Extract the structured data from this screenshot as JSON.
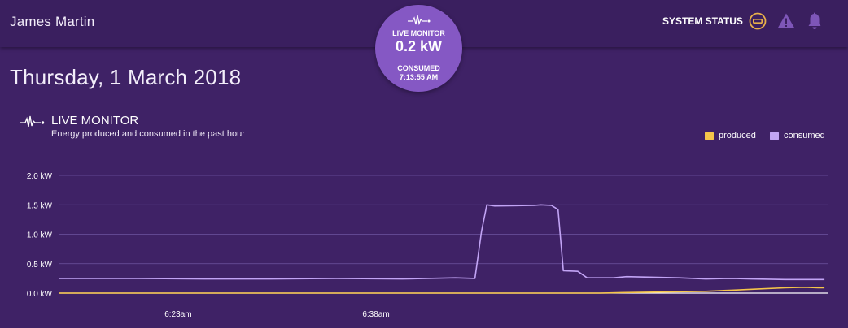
{
  "header": {
    "user_name": "James Martin",
    "system_status_label": "SYSTEM STATUS",
    "icons": [
      {
        "name": "minus-circle-icon",
        "color": "#e8b04a"
      },
      {
        "name": "warning-icon",
        "color": "#7e56b8"
      },
      {
        "name": "bell-icon",
        "color": "#7e56b8"
      }
    ]
  },
  "live_bubble": {
    "icon": "pulse-icon",
    "label": "LIVE MONITOR",
    "value": "0.2 kW",
    "consumed_label": "CONSUMED",
    "time": "7:13:55 AM",
    "color": "#8558c4"
  },
  "date_heading": "Thursday, 1 March 2018",
  "section": {
    "icon": "pulse-icon",
    "title": "LIVE MONITOR",
    "subtitle": "Energy produced and consumed in the past hour"
  },
  "colors": {
    "background": "#3f2266",
    "produced": "#f5c54a",
    "consumed": "#c2a4f5",
    "grid": "#6e54a0"
  },
  "chart_data": {
    "type": "line",
    "title": "LIVE MONITOR",
    "subtitle": "Energy produced and consumed in the past hour",
    "legend_position": "top-right",
    "grid": true,
    "ylim": [
      0,
      2.0
    ],
    "y_ticks": [
      "2.0 kW",
      "1.5 kW",
      "1.0 kW",
      "0.5 kW",
      "0.0 kW"
    ],
    "y_tick_values": [
      2.0,
      1.5,
      1.0,
      0.5,
      0.0
    ],
    "x_ticks": [
      {
        "label": "6:23am",
        "minute": 23
      },
      {
        "label": "6:38am",
        "minute": 38
      }
    ],
    "x_range_minutes": [
      14,
      72.3
    ],
    "series": [
      {
        "name": "produced",
        "color": "#f5c54a",
        "points": [
          [
            14,
            0.0
          ],
          [
            55,
            0.0
          ],
          [
            57,
            0.01
          ],
          [
            60,
            0.02
          ],
          [
            63,
            0.03
          ],
          [
            65,
            0.05
          ],
          [
            67,
            0.07
          ],
          [
            69,
            0.09
          ],
          [
            70.5,
            0.1
          ],
          [
            71.5,
            0.09
          ],
          [
            72,
            0.09
          ]
        ]
      },
      {
        "name": "consumed",
        "color": "#c2a4f5",
        "points": [
          [
            14,
            0.25
          ],
          [
            20,
            0.25
          ],
          [
            25,
            0.24
          ],
          [
            30,
            0.24
          ],
          [
            35,
            0.25
          ],
          [
            40,
            0.24
          ],
          [
            44,
            0.26
          ],
          [
            45.5,
            0.25
          ],
          [
            46,
            1.05
          ],
          [
            46.4,
            1.5
          ],
          [
            47,
            1.48
          ],
          [
            50,
            1.49
          ],
          [
            50.5,
            1.5
          ],
          [
            51.3,
            1.49
          ],
          [
            51.8,
            1.42
          ],
          [
            52.2,
            0.38
          ],
          [
            53.3,
            0.37
          ],
          [
            54,
            0.26
          ],
          [
            56,
            0.26
          ],
          [
            57,
            0.28
          ],
          [
            59,
            0.27
          ],
          [
            61,
            0.26
          ],
          [
            63,
            0.24
          ],
          [
            65,
            0.25
          ],
          [
            66.5,
            0.24
          ],
          [
            69,
            0.23
          ],
          [
            72,
            0.23
          ]
        ]
      }
    ]
  }
}
